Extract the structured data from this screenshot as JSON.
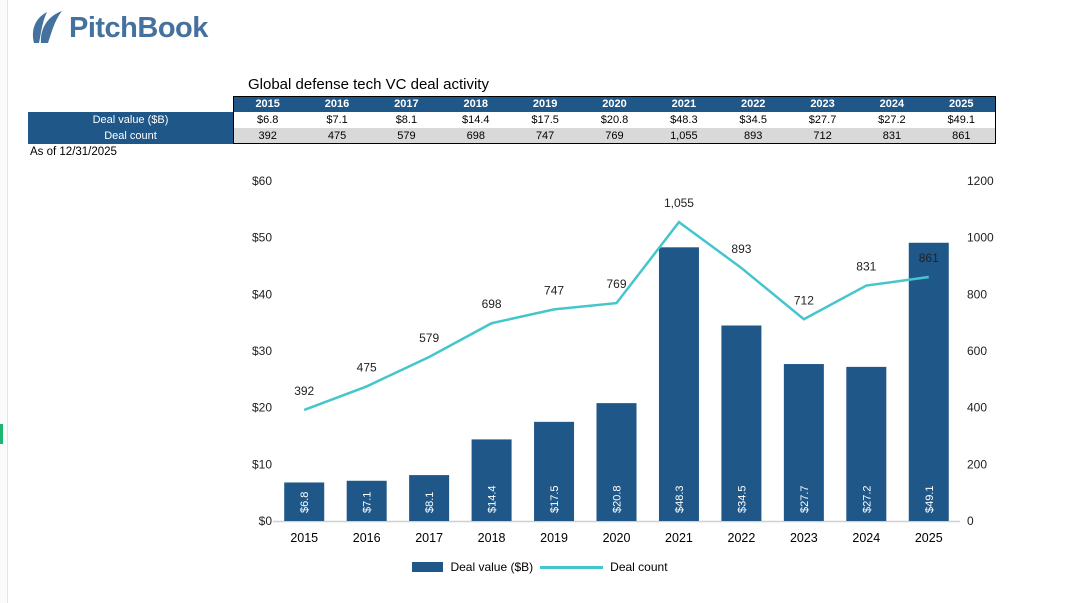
{
  "brand": {
    "logo_text": "PitchBook",
    "logo_color": "#44719e"
  },
  "title": "Global defense tech VC deal activity",
  "as_of": "As of 12/31/2025",
  "table": {
    "years": [
      "2015",
      "2016",
      "2017",
      "2018",
      "2019",
      "2020",
      "2021",
      "2022",
      "2023",
      "2024",
      "2025"
    ],
    "rows": [
      {
        "label": "Deal value ($B)",
        "values": [
          "$6.8",
          "$7.1",
          "$8.1",
          "$14.4",
          "$17.5",
          "$20.8",
          "$48.3",
          "$34.5",
          "$27.7",
          "$27.2",
          "$49.1"
        ]
      },
      {
        "label": "Deal count",
        "values": [
          "392",
          "475",
          "579",
          "698",
          "747",
          "769",
          "1,055",
          "893",
          "712",
          "831",
          "861"
        ]
      }
    ]
  },
  "chart_data": {
    "type": "combo-bar-line",
    "title": "Global defense tech VC deal activity",
    "categories": [
      "2015",
      "2016",
      "2017",
      "2018",
      "2019",
      "2020",
      "2021",
      "2022",
      "2023",
      "2024",
      "2025"
    ],
    "series": [
      {
        "name": "Deal value ($B)",
        "chart": "bar",
        "axis": "left",
        "values": [
          6.8,
          7.1,
          8.1,
          14.4,
          17.5,
          20.8,
          48.3,
          34.5,
          27.7,
          27.2,
          49.1
        ],
        "labels": [
          "$6.8",
          "$7.1",
          "$8.1",
          "$14.4",
          "$17.5",
          "$20.8",
          "$48.3",
          "$34.5",
          "$27.7",
          "$27.2",
          "$49.1"
        ],
        "color": "#1f5788"
      },
      {
        "name": "Deal count",
        "chart": "line",
        "axis": "right",
        "values": [
          392,
          475,
          579,
          698,
          747,
          769,
          1055,
          893,
          712,
          831,
          861
        ],
        "labels": [
          "392",
          "475",
          "579",
          "698",
          "747",
          "769",
          "1,055",
          "893",
          "712",
          "831",
          "861"
        ],
        "color": "#45c6cc"
      }
    ],
    "left_axis": {
      "min": 0,
      "max": 60,
      "tick_labels": [
        "$0",
        "$10",
        "$20",
        "$30",
        "$40",
        "$50",
        "$60"
      ]
    },
    "right_axis": {
      "min": 0,
      "max": 1200,
      "tick_labels": [
        "0",
        "200",
        "400",
        "600",
        "800",
        "1000",
        "1200"
      ]
    },
    "gridlines": false,
    "legend_position": "bottom-center",
    "legend": [
      {
        "label": "Deal value ($B)",
        "swatch": "bar",
        "color": "#1f5788"
      },
      {
        "label": "Deal count",
        "swatch": "line",
        "color": "#45c6cc"
      }
    ]
  },
  "colors": {
    "navy": "#1f5788",
    "teal": "#45c6cc",
    "table_alt_row": "#d9d9d9",
    "axis_line": "#d0d0d0",
    "data_label": "#222222",
    "green_marker": "#1db572"
  }
}
